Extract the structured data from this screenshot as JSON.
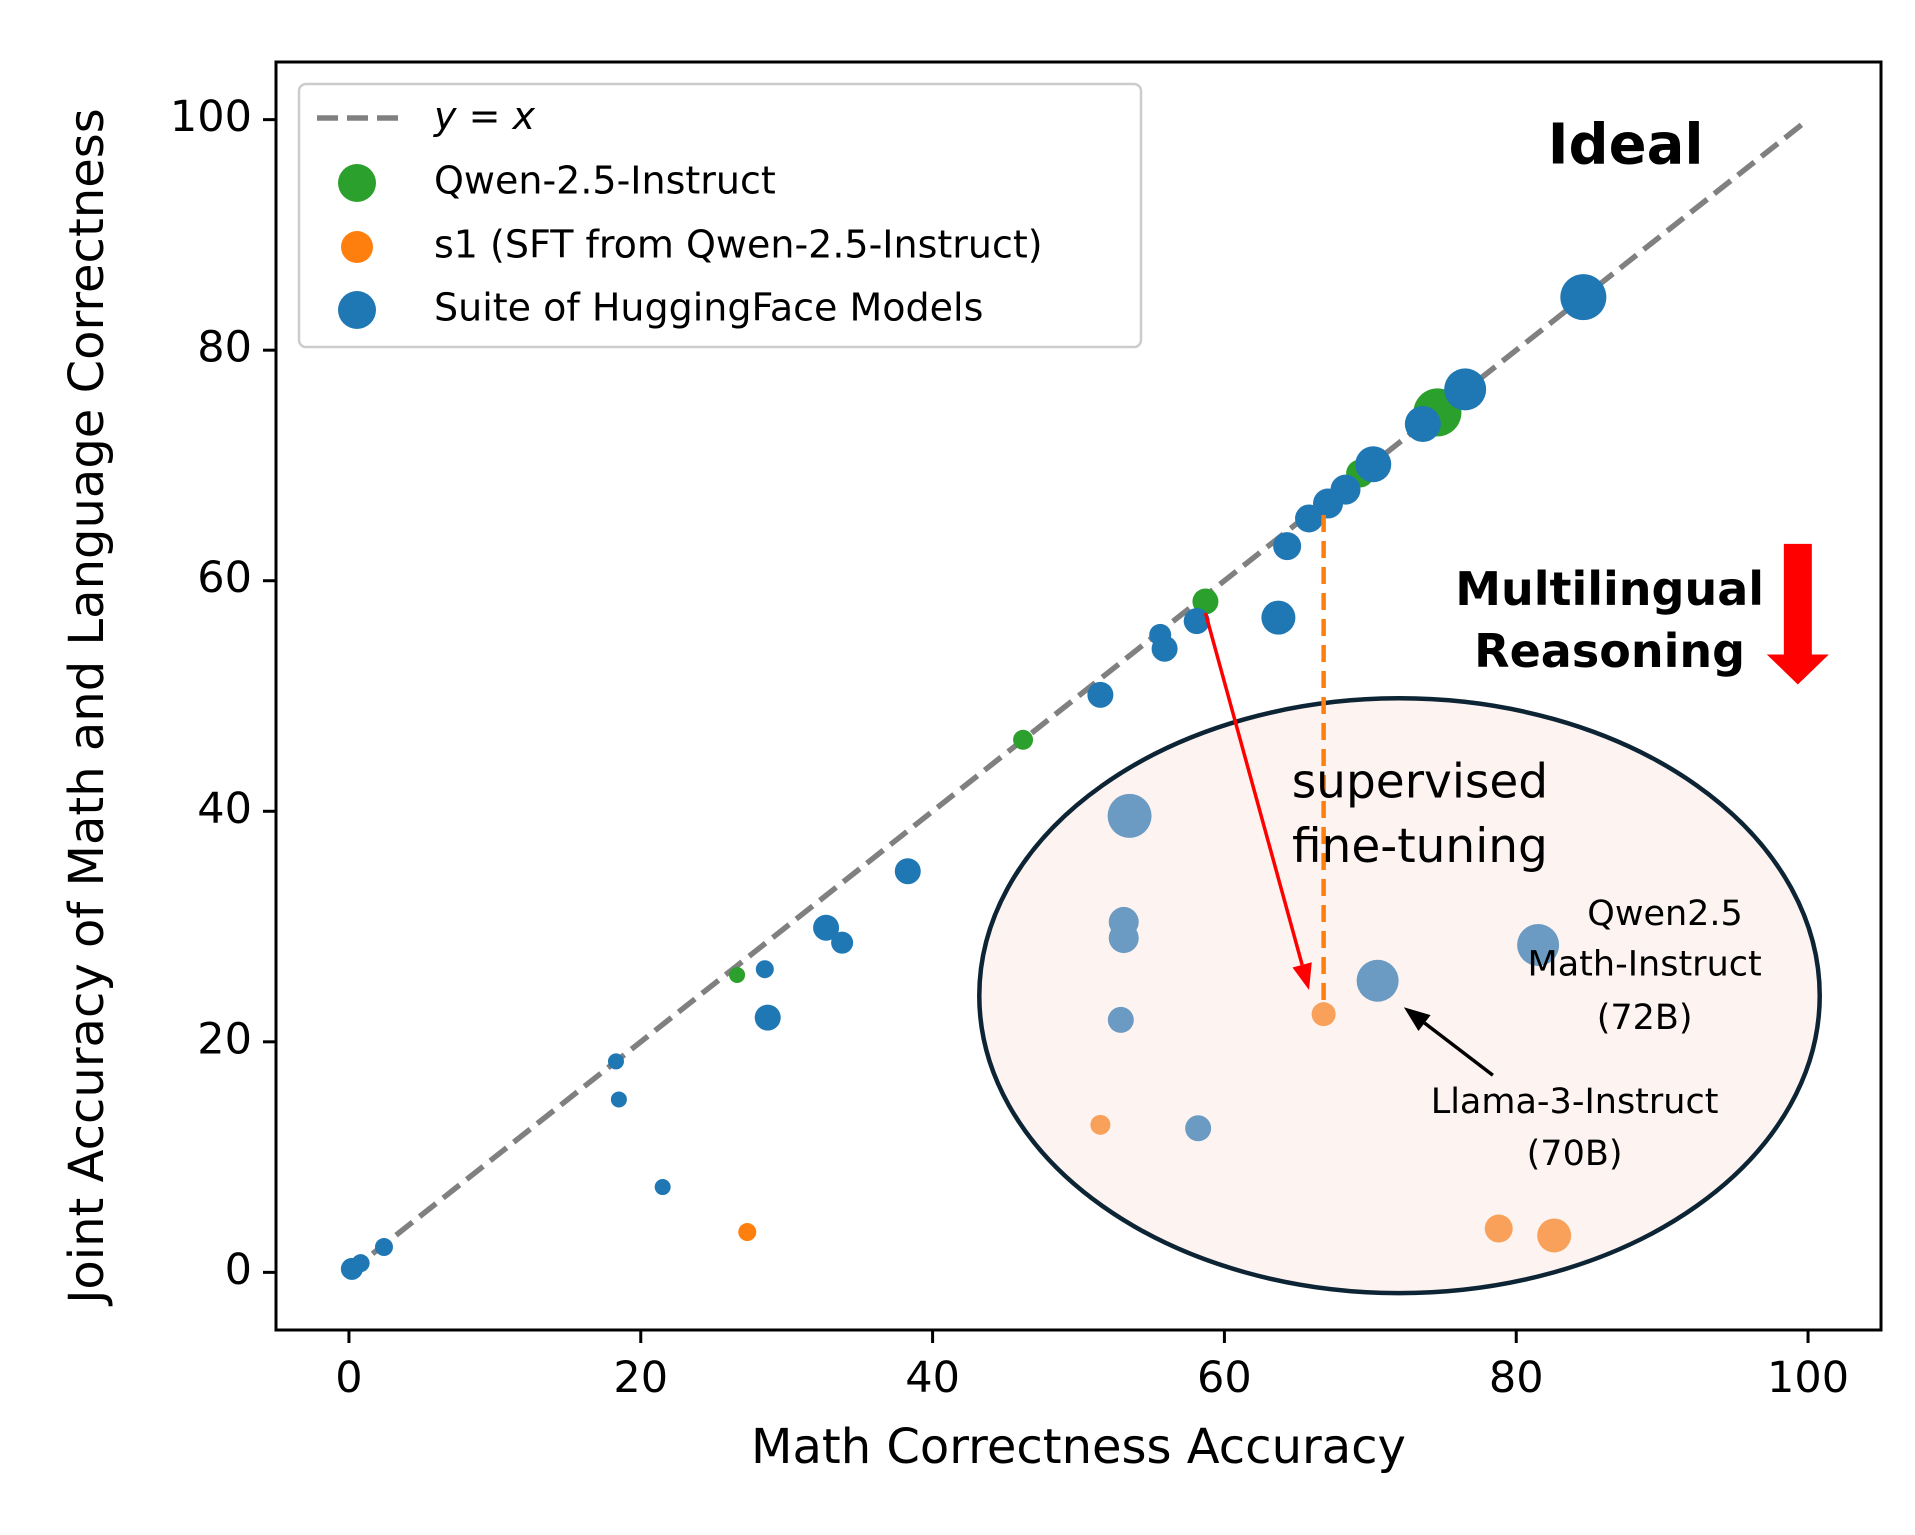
{
  "chart_data": {
    "type": "scatter",
    "title": "",
    "xlabel": "Math Correctness Accuracy",
    "ylabel": "Joint Accuracy of Math and Language Correctness",
    "xlim": [
      -5,
      105
    ],
    "ylim": [
      -5,
      105
    ],
    "xticks": [
      0,
      20,
      40,
      60,
      80,
      100
    ],
    "yticks": [
      0,
      20,
      40,
      60,
      80,
      100
    ],
    "grid": false,
    "legend_position": "top-left",
    "reference_line": {
      "label": "y = x",
      "label_var_left": "y",
      "label_eq": " = ",
      "label_var_right": "x",
      "color": "#808080",
      "style": "dashed",
      "from": [
        0,
        0
      ],
      "to": [
        100,
        100
      ]
    },
    "series": [
      {
        "name": "Qwen-2.5-Instruct",
        "color": "#2ca02c",
        "points": [
          {
            "x": 26.6,
            "y": 25.8,
            "size": 8
          },
          {
            "x": 46.2,
            "y": 46.2,
            "size": 10
          },
          {
            "x": 58.7,
            "y": 58.2,
            "size": 13
          },
          {
            "x": 69.3,
            "y": 69.3,
            "size": 14
          },
          {
            "x": 74.6,
            "y": 74.6,
            "size": 24
          }
        ]
      },
      {
        "name": "s1 (SFT from Qwen-2.5-Instruct)",
        "color": "#ff7f0e",
        "points": [
          {
            "x": 27.3,
            "y": 3.5,
            "size": 9
          },
          {
            "x": 51.5,
            "y": 12.8,
            "size": 10
          },
          {
            "x": 66.8,
            "y": 22.4,
            "size": 12
          },
          {
            "x": 78.8,
            "y": 3.8,
            "size": 14
          },
          {
            "x": 82.6,
            "y": 3.2,
            "size": 17
          }
        ]
      },
      {
        "name": "Suite of HuggingFace Models",
        "color": "#1f77b4",
        "points": [
          {
            "x": 0.2,
            "y": 0.3,
            "size": 11
          },
          {
            "x": 0.8,
            "y": 0.8,
            "size": 9
          },
          {
            "x": 2.4,
            "y": 2.2,
            "size": 9
          },
          {
            "x": 18.3,
            "y": 18.3,
            "size": 8
          },
          {
            "x": 18.5,
            "y": 15.0,
            "size": 8
          },
          {
            "x": 21.5,
            "y": 7.4,
            "size": 8
          },
          {
            "x": 28.5,
            "y": 26.3,
            "size": 9
          },
          {
            "x": 28.7,
            "y": 22.1,
            "size": 13
          },
          {
            "x": 32.7,
            "y": 29.9,
            "size": 13
          },
          {
            "x": 33.8,
            "y": 28.6,
            "size": 11
          },
          {
            "x": 38.3,
            "y": 34.8,
            "size": 13
          },
          {
            "x": 51.5,
            "y": 50.1,
            "size": 13
          },
          {
            "x": 53.5,
            "y": 39.6,
            "size": 22
          },
          {
            "x": 53.1,
            "y": 30.4,
            "size": 15
          },
          {
            "x": 53.1,
            "y": 29.0,
            "size": 15
          },
          {
            "x": 52.9,
            "y": 21.9,
            "size": 13
          },
          {
            "x": 55.6,
            "y": 55.3,
            "size": 11
          },
          {
            "x": 55.9,
            "y": 54.1,
            "size": 13
          },
          {
            "x": 58.1,
            "y": 56.5,
            "size": 13
          },
          {
            "x": 58.2,
            "y": 12.5,
            "size": 13
          },
          {
            "x": 63.7,
            "y": 56.8,
            "size": 17
          },
          {
            "x": 64.3,
            "y": 63.0,
            "size": 14
          },
          {
            "x": 65.8,
            "y": 65.4,
            "size": 14
          },
          {
            "x": 67.1,
            "y": 66.7,
            "size": 15
          },
          {
            "x": 68.3,
            "y": 67.9,
            "size": 15
          },
          {
            "x": 70.5,
            "y": 25.3,
            "size": 21
          },
          {
            "x": 70.2,
            "y": 70.1,
            "size": 18
          },
          {
            "x": 73.6,
            "y": 73.6,
            "size": 18
          },
          {
            "x": 76.5,
            "y": 76.6,
            "size": 21
          },
          {
            "x": 81.5,
            "y": 28.4,
            "size": 21
          },
          {
            "x": 84.6,
            "y": 84.6,
            "size": 23
          }
        ]
      }
    ],
    "highlight_region": {
      "center": [
        72.0,
        24.0
      ],
      "rx_data": 28.8,
      "ry_data": 25.8,
      "fill": "#fdf4f1",
      "stroke": "#0d2435"
    },
    "overlay_points_color": "#6b9ac2",
    "overlay_orange_color": "#f9a15a",
    "annotations": [
      {
        "name": "ideal-label",
        "text": "Ideal",
        "x": 87.5,
        "y": 97.5
      },
      {
        "name": "multilingual-label-line1",
        "text": "Multilingual",
        "x": 86.4,
        "y": 59.0
      },
      {
        "name": "multilingual-label-line2",
        "text": "Reasoning",
        "x": 86.4,
        "y": 53.6
      },
      {
        "name": "sft-label-line1",
        "text": "supervised",
        "x": 73.4,
        "y": 42.3
      },
      {
        "name": "sft-label-line2",
        "text": "fine-tuning",
        "x": 73.4,
        "y": 36.7
      },
      {
        "name": "qwen-math-label-line1",
        "text": "Qwen2.5",
        "x": 90.2,
        "y": 31.0
      },
      {
        "name": "qwen-math-label-line2",
        "text": "Math-Instruct",
        "x": 88.8,
        "y": 26.6
      },
      {
        "name": "qwen-math-label-line3",
        "text": "(72B)",
        "x": 88.8,
        "y": 22.0
      },
      {
        "name": "llama-label-line1",
        "text": "Llama-3-Instruct",
        "x": 84.0,
        "y": 14.7
      },
      {
        "name": "llama-label-line2",
        "text": "(70B)",
        "x": 84.0,
        "y": 10.2
      }
    ],
    "arrows": [
      {
        "name": "sft-arrow",
        "color": "#ff0000",
        "from": [
          58.7,
          57.2
        ],
        "to": [
          65.8,
          24.5
        ]
      },
      {
        "name": "llama-arrow",
        "color": "#000000",
        "from": [
          78.4,
          17.1
        ],
        "to": [
          72.3,
          23.0
        ]
      },
      {
        "name": "multilingual-down-arrow",
        "color": "#ff0000",
        "from": [
          99.3,
          63.2
        ],
        "to": [
          99.3,
          51.0
        ]
      }
    ],
    "vertical_drop": {
      "name": "sft-drop-line",
      "color": "#ff7f0e",
      "x": 66.8,
      "y_from": 65.7,
      "y_to": 22.9
    }
  }
}
